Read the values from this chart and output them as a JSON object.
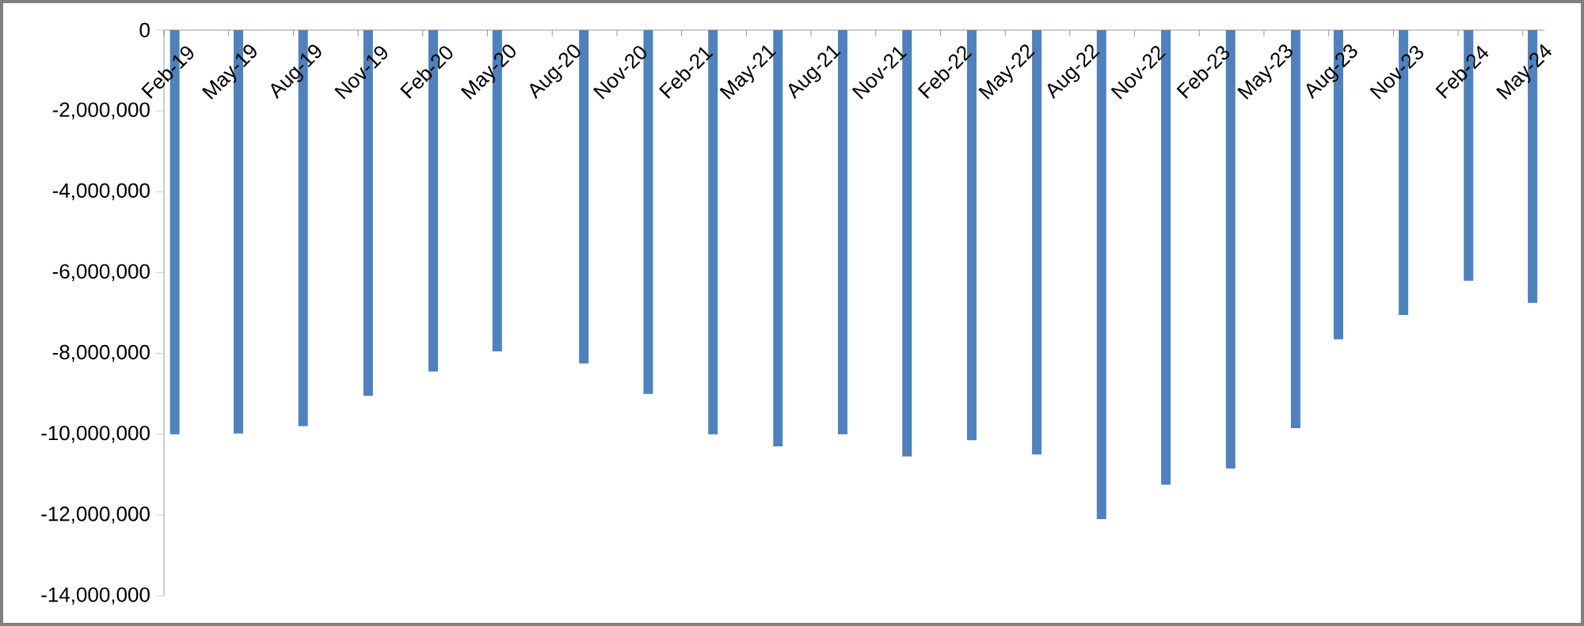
{
  "chart_data": {
    "type": "bar",
    "x": [
      "2019-02-15",
      "2019-05-15",
      "2019-08-15",
      "2019-11-15",
      "2020-02-15",
      "2020-05-15",
      "2020-09-15",
      "2020-12-15",
      "2021-03-15",
      "2021-06-15",
      "2021-09-15",
      "2021-12-15",
      "2022-03-15",
      "2022-06-15",
      "2022-09-15",
      "2022-12-15",
      "2023-03-15",
      "2023-06-15",
      "2023-08-15",
      "2023-11-15",
      "2024-02-15",
      "2024-05-15"
    ],
    "values": [
      -10000000,
      -9980000,
      -9800000,
      -9050000,
      -8450000,
      -7950000,
      -8250000,
      -9000000,
      -10000000,
      -10300000,
      -10000000,
      -10550000,
      -10150000,
      -10500000,
      -12100000,
      -11250000,
      -10850000,
      -9850000,
      -7650000,
      -7050000,
      -6200000,
      -6750000
    ],
    "color": "#4f81bd",
    "xlim": [
      "2019-02-01",
      "2024-06-01"
    ],
    "xticks": [
      {
        "value": "2019-02",
        "label": "Feb-19"
      },
      {
        "value": "2019-05",
        "label": "May-19"
      },
      {
        "value": "2019-08",
        "label": "Aug-19"
      },
      {
        "value": "2019-11",
        "label": "Nov-19"
      },
      {
        "value": "2020-02",
        "label": "Feb-20"
      },
      {
        "value": "2020-05",
        "label": "May-20"
      },
      {
        "value": "2020-08",
        "label": "Aug-20"
      },
      {
        "value": "2020-11",
        "label": "Nov-20"
      },
      {
        "value": "2021-02",
        "label": "Feb-21"
      },
      {
        "value": "2021-05",
        "label": "May-21"
      },
      {
        "value": "2021-08",
        "label": "Aug-21"
      },
      {
        "value": "2021-11",
        "label": "Nov-21"
      },
      {
        "value": "2022-02",
        "label": "Feb-22"
      },
      {
        "value": "2022-05",
        "label": "May-22"
      },
      {
        "value": "2022-08",
        "label": "Aug-22"
      },
      {
        "value": "2022-11",
        "label": "Nov-22"
      },
      {
        "value": "2023-02",
        "label": "Feb-23"
      },
      {
        "value": "2023-05",
        "label": "May-23"
      },
      {
        "value": "2023-08",
        "label": "Aug-23"
      },
      {
        "value": "2023-11",
        "label": "Nov-23"
      },
      {
        "value": "2024-02",
        "label": "Feb-24"
      },
      {
        "value": "2024-05",
        "label": "May-24"
      }
    ],
    "ylim": [
      -14000000,
      0
    ],
    "yticks": [
      0,
      {
        "value": -2000000,
        "label": "-2,000,000"
      },
      {
        "value": -4000000,
        "label": "-4,000,000"
      },
      {
        "value": -6000000,
        "label": "-6,000,000"
      },
      {
        "value": -8000000,
        "label": "-8,000,000"
      },
      {
        "value": -10000000,
        "label": "-10,000,000"
      },
      {
        "value": -12000000,
        "label": "-12,000,000"
      },
      {
        "value": -14000000,
        "label": "-14,000,000"
      }
    ]
  }
}
